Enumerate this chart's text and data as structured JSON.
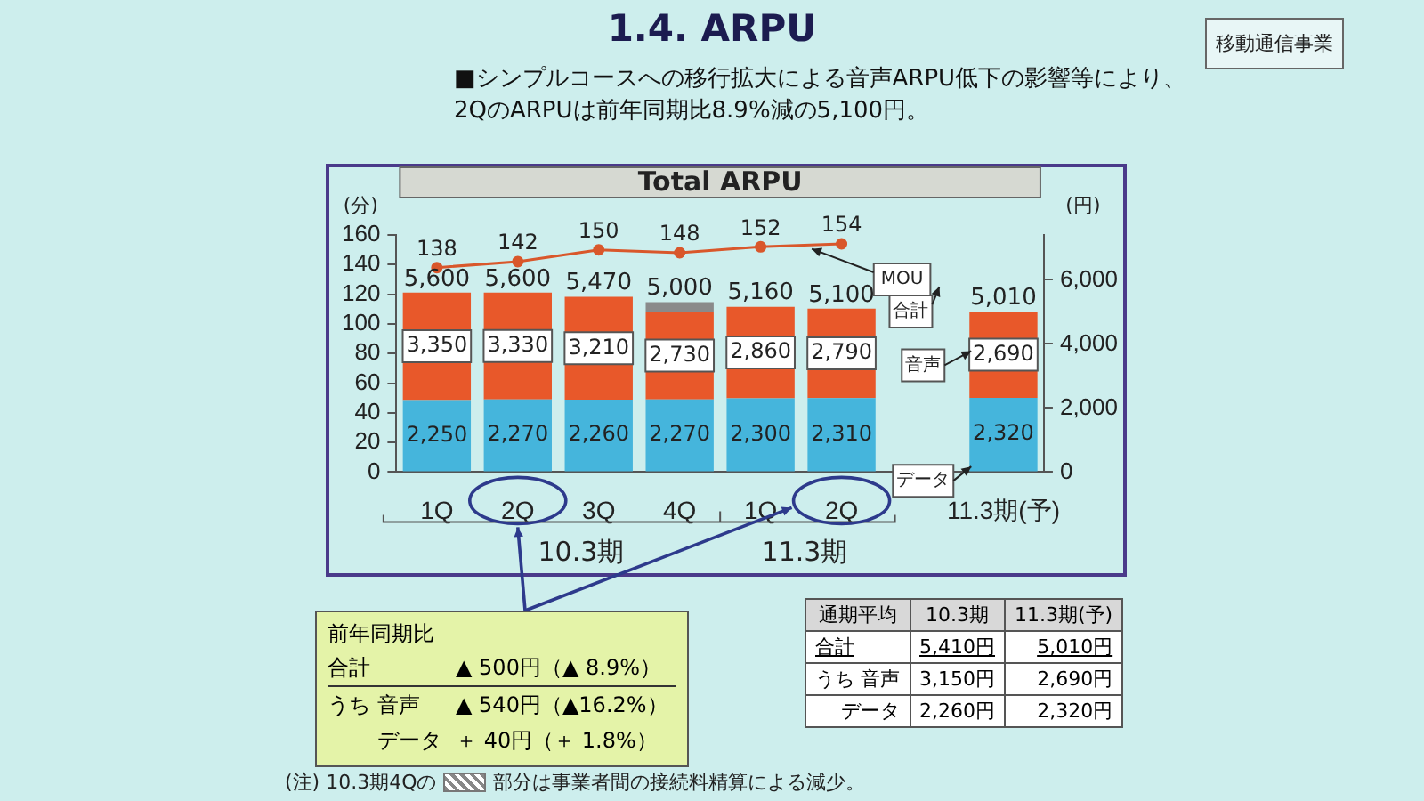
{
  "chart_data": {
    "type": "bar",
    "title": "1.4. ARPU",
    "subtitle": "■シンプルコースへの移行拡大による音声ARPU低下の影響等により、\n2QのARPUは前年同期比8.9%減の5,100円。",
    "ylabel": "(分)",
    "y2label": "(円)",
    "categories": [
      "1Q",
      "2Q",
      "3Q",
      "4Q",
      "1Q",
      "2Q",
      null,
      "11.3期(予)"
    ],
    "stacked": true,
    "series": [
      {
        "name": "データ",
        "color": "#45b5dc",
        "axis": "y2",
        "values": [
          2250,
          2270,
          2260,
          2270,
          2300,
          2310,
          null,
          2320
        ],
        "value_labels": [
          "2,250",
          "2,270",
          "2,260",
          "2,270",
          "2,300",
          "2,310",
          null,
          "2,320"
        ]
      },
      {
        "name": "音声",
        "color": "#e8582a",
        "axis": "y2",
        "values": [
          3350,
          3330,
          3210,
          2730,
          2860,
          2790,
          null,
          2690
        ],
        "value_labels": [
          "3,350",
          "3,330",
          "3,210",
          "2,730",
          "2,860",
          "2,790",
          null,
          "2,690"
        ]
      },
      {
        "color": "#8a8a8a",
        "axis": "y2",
        "values": [
          null,
          null,
          null,
          300,
          null,
          null,
          null,
          null
        ]
      },
      {
        "name": "MOU",
        "type": "line",
        "color": "#d9572b",
        "values": [
          138,
          142,
          150,
          148,
          152,
          154,
          null,
          null
        ],
        "value_labels": [
          "138",
          "142",
          "150",
          "148",
          "152",
          "154",
          null,
          null
        ]
      }
    ],
    "totals": [
      "5,600",
      "5,600",
      "5,470",
      "5,000",
      "5,160",
      "5,100",
      null,
      "5,010"
    ],
    "ylim": [
      0,
      160
    ],
    "yticks": [
      0,
      20,
      40,
      60,
      80,
      100,
      120,
      140,
      160
    ],
    "y2lim": [
      0,
      7400
    ],
    "y2ticks": [
      0,
      {
        "value": 2000,
        "label": "2,000"
      },
      {
        "value": 4000,
        "label": "4,000"
      },
      {
        "value": 6000,
        "label": "6,000"
      }
    ],
    "marker": "circle",
    "annotations": [
      "Total ARPU",
      "移動通信事業",
      "10.3期",
      "11.3期",
      "前年同期比",
      "合計",
      "▲ 500円（▲ 8.9%）",
      "うち 音声",
      "▲ 540円（▲16.2%）",
      "データ",
      "＋ 40円（＋ 1.8%）",
      "通期平均",
      "10.3期",
      "11.3期(予)",
      "合計",
      "5,410円",
      "5,010円",
      "うち 音声",
      "3,150円",
      "2,690円",
      "データ",
      "2,260円",
      "2,320円",
      "(注) 10.3期4Qの",
      "部分は事業者間の接続料精算による減少。",
      "合計"
    ]
  }
}
